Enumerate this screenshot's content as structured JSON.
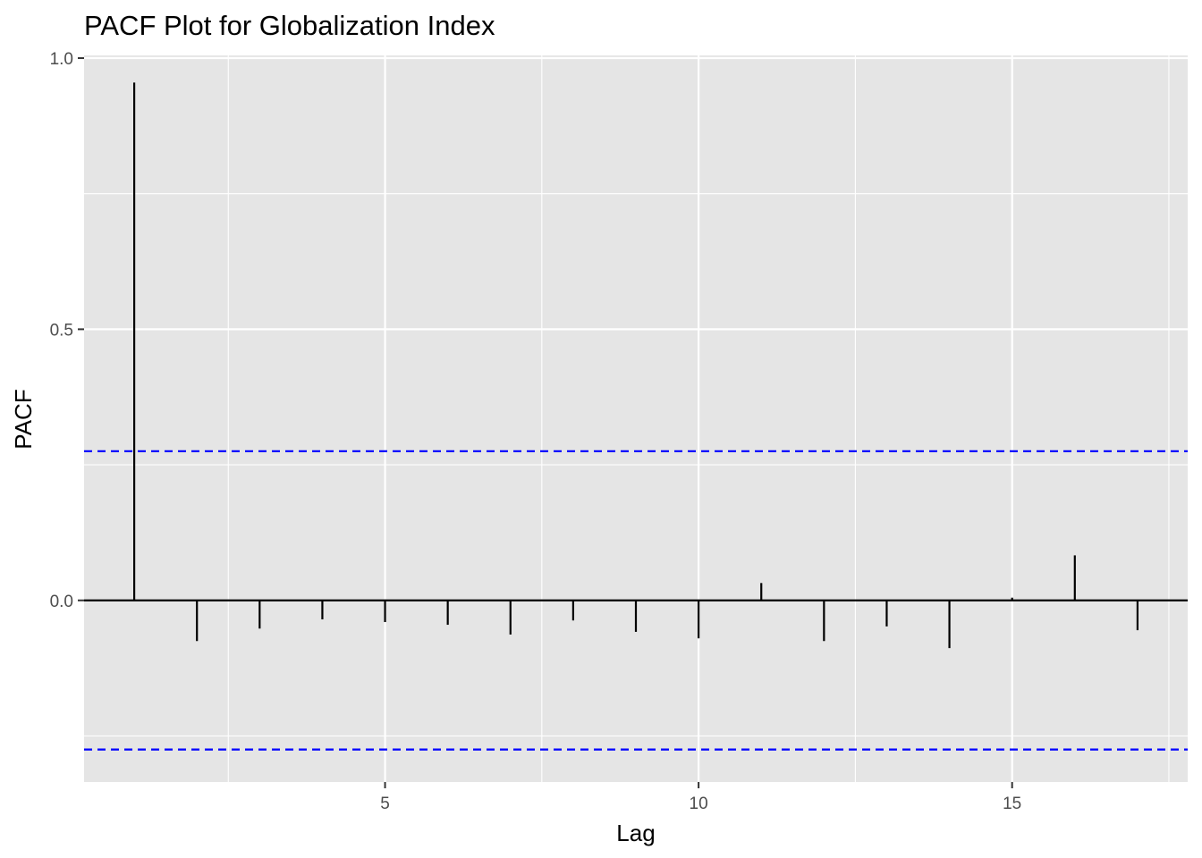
{
  "chart_data": {
    "type": "bar",
    "title": "PACF Plot for Globalization Index",
    "xlabel": "Lag",
    "ylabel": "PACF",
    "x": [
      1,
      2,
      3,
      4,
      5,
      6,
      7,
      8,
      9,
      10,
      11,
      12,
      13,
      14,
      15,
      16,
      17
    ],
    "values": [
      0.955,
      -0.075,
      -0.052,
      -0.035,
      -0.04,
      -0.045,
      -0.063,
      -0.037,
      -0.058,
      -0.07,
      0.032,
      -0.075,
      -0.048,
      -0.088,
      0.005,
      0.083,
      -0.055
    ],
    "xlim": [
      0.2,
      17.8
    ],
    "ylim": [
      -0.335,
      1.005
    ],
    "x_ticks": [
      5,
      10,
      15
    ],
    "x_tick_labels": [
      "5",
      "10",
      "15"
    ],
    "y_ticks": [
      0.0,
      0.5,
      1.0
    ],
    "y_tick_labels": [
      "0.0",
      "0.5",
      "1.0"
    ],
    "confidence_bounds": [
      0.275,
      -0.275
    ],
    "colors": {
      "panel_background": "#e5e5e5",
      "grid": "#ffffff",
      "stems": "#000000",
      "confidence_line": "#0000ff"
    },
    "grid": true
  }
}
